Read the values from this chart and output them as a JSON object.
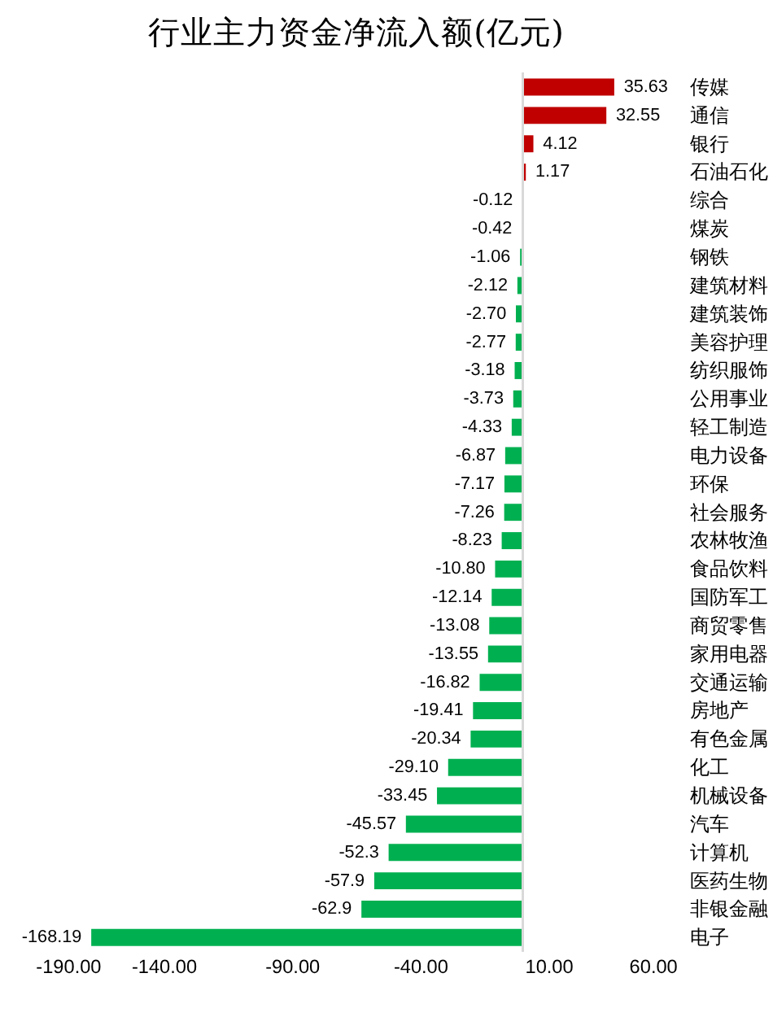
{
  "chart_data": {
    "type": "bar",
    "orientation": "horizontal",
    "title": "行业主力资金净流入额(亿元)",
    "categories": [
      "传媒",
      "通信",
      "银行",
      "石油石化",
      "综合",
      "煤炭",
      "钢铁",
      "建筑材料",
      "建筑装饰",
      "美容护理",
      "纺织服饰",
      "公用事业",
      "轻工制造",
      "电力设备",
      "环保",
      "社会服务",
      "农林牧渔",
      "食品饮料",
      "国防军工",
      "商贸零售",
      "家用电器",
      "交通运输",
      "房地产",
      "有色金属",
      "化工",
      "机械设备",
      "汽车",
      "计算机",
      "医药生物",
      "非银金融",
      "电子"
    ],
    "values": [
      35.63,
      32.55,
      4.12,
      1.17,
      -0.12,
      -0.42,
      -1.06,
      -2.12,
      -2.7,
      -2.77,
      -3.18,
      -3.73,
      -4.33,
      -6.87,
      -7.17,
      -7.26,
      -8.23,
      -10.8,
      -12.14,
      -13.08,
      -13.55,
      -16.82,
      -19.41,
      -20.34,
      -29.1,
      -33.45,
      -45.57,
      -52.3,
      -57.9,
      -62.9,
      -168.19
    ],
    "value_labels": [
      "35.63",
      "32.55",
      "4.12",
      "1.17",
      "-0.12",
      "-0.42",
      "-1.06",
      "-2.12",
      "-2.70",
      "-2.77",
      "-3.18",
      "-3.73",
      "-4.33",
      "-6.87",
      "-7.17",
      "-7.26",
      "-8.23",
      "-10.80",
      "-12.14",
      "-13.08",
      "-13.55",
      "-16.82",
      "-19.41",
      "-20.34",
      "-29.10",
      "-33.45",
      "-45.57",
      "-52.3",
      "-57.9",
      "-62.9",
      "-168.19"
    ],
    "colors": [
      "#c00000",
      "#c00000",
      "#c00000",
      "#c00000",
      "#00b050",
      "#00b050",
      "#00b050",
      "#00b050",
      "#00b050",
      "#00b050",
      "#00b050",
      "#00b050",
      "#00b050",
      "#00b050",
      "#00b050",
      "#00b050",
      "#00b050",
      "#00b050",
      "#00b050",
      "#00b050",
      "#00b050",
      "#00b050",
      "#00b050",
      "#00b050",
      "#00b050",
      "#00b050",
      "#00b050",
      "#00b050",
      "#00b050",
      "#00b050",
      "#00b050"
    ],
    "xlim": [
      -190,
      60
    ],
    "xticks": [
      {
        "value": -190,
        "label": "-190.00"
      },
      {
        "value": -140,
        "label": "-140.00"
      },
      {
        "value": -90,
        "label": "-90.00"
      },
      {
        "value": -40,
        "label": "-40.00"
      },
      {
        "value": 10,
        "label": "10.00"
      },
      {
        "value": 60,
        "label": "60.00"
      }
    ],
    "grid": false,
    "legend": false
  }
}
